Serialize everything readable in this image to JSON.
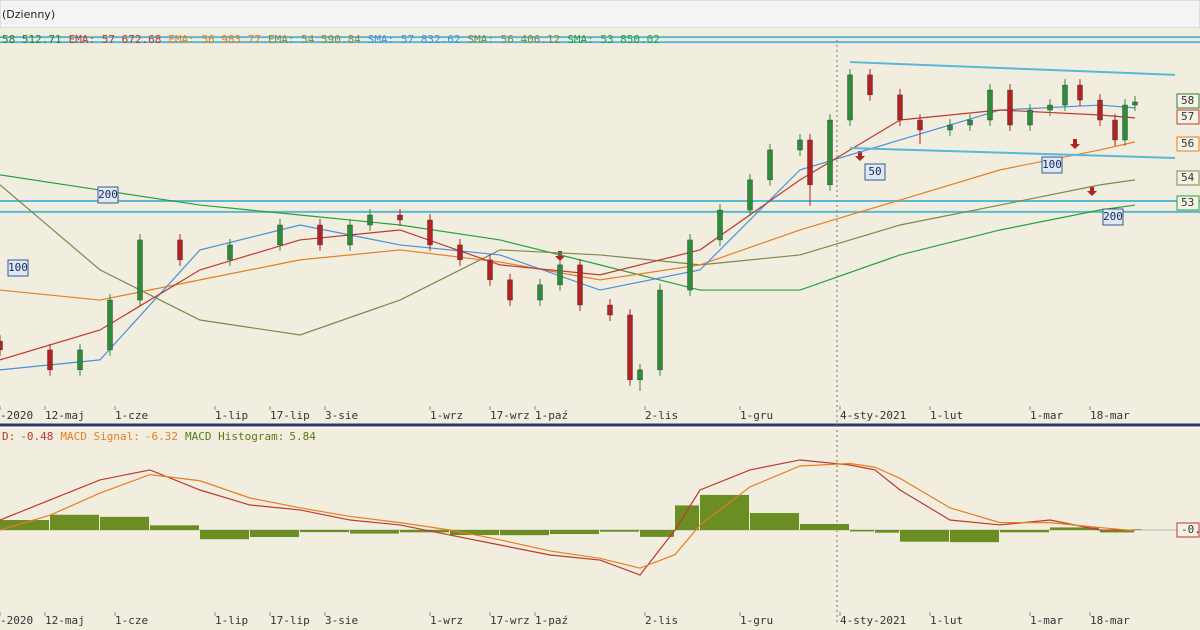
{
  "window_title": "(Dzienny)",
  "chart_data": [
    {
      "type": "candlestick",
      "legend": [
        {
          "text": "58 512.71",
          "color": "#2e7d32"
        },
        {
          "text": "EMA: 57 672.68",
          "color": "#c0392b"
        },
        {
          "text": "EMA: 56 983.77",
          "color": "#e67e22"
        },
        {
          "text": "EMA: 54 590.84",
          "color": "#8a8a3a"
        },
        {
          "text": "SMA: 57 832.62",
          "color": "#4a90d9"
        },
        {
          "text": "SMA: 56 406.12",
          "color": "#7a8a4a"
        },
        {
          "text": "SMA: 53 850.02",
          "color": "#27a040"
        }
      ],
      "x": [
        0,
        10,
        16,
        22,
        28,
        36,
        46,
        56,
        64,
        70,
        74,
        80,
        86,
        92,
        98,
        102,
        108,
        112,
        116,
        122,
        126,
        128,
        132,
        138,
        144,
        150,
        154,
        160,
        162,
        166,
        170,
        174,
        180,
        184,
        190,
        194,
        198,
        202,
        206,
        210,
        213,
        216,
        220,
        223,
        225,
        227
      ],
      "open": [
        47900,
        47530,
        46690,
        47530,
        49630,
        52160,
        51320,
        51950,
        52790,
        51950,
        52790,
        53210,
        53000,
        51950,
        51320,
        50480,
        49630,
        50270,
        51110,
        49420,
        49000,
        46270,
        46690,
        50050,
        52160,
        53420,
        54690,
        55950,
        56370,
        54480,
        57210,
        59110,
        58270,
        57210,
        56790,
        57000,
        57210,
        58470,
        57000,
        57630,
        57840,
        58680,
        58050,
        57210,
        56370,
        57840
      ],
      "high": [
        48150,
        47780,
        47780,
        49880,
        52410,
        52410,
        52200,
        53040,
        53040,
        53040,
        53460,
        53460,
        53250,
        52200,
        51570,
        50730,
        50520,
        51360,
        51360,
        49670,
        49250,
        46940,
        50300,
        52410,
        53670,
        54940,
        56200,
        56620,
        56620,
        57460,
        59360,
        59360,
        58520,
        57460,
        57250,
        57460,
        58720,
        58720,
        57880,
        58090,
        58930,
        58930,
        58300,
        57460,
        58090,
        58220
      ],
      "low": [
        47280,
        46440,
        46440,
        47280,
        49380,
        51070,
        51070,
        51700,
        51700,
        51700,
        52540,
        52750,
        51700,
        51070,
        50230,
        49380,
        49380,
        50020,
        49170,
        48750,
        46020,
        45800,
        46440,
        49800,
        51910,
        53170,
        54440,
        55700,
        53600,
        54230,
        56960,
        58020,
        56960,
        56200,
        56540,
        56750,
        56960,
        56750,
        56750,
        57380,
        57590,
        57800,
        56960,
        56120,
        56120,
        57590
      ],
      "close": [
        47530,
        46690,
        47530,
        49630,
        52160,
        51320,
        51950,
        52790,
        51950,
        52790,
        53210,
        53000,
        51950,
        51320,
        50480,
        49630,
        50270,
        51110,
        49420,
        49000,
        46270,
        46690,
        50050,
        52160,
        53420,
        54690,
        55950,
        56370,
        54480,
        57210,
        59110,
        58270,
        57210,
        56790,
        57000,
        57210,
        58470,
        57000,
        57630,
        57840,
        58680,
        58050,
        57210,
        56370,
        57840,
        57970
      ],
      "up_color": "#2e8b3a",
      "down_color": "#b22222",
      "overlay_x": [
        0,
        20,
        40,
        60,
        80,
        100,
        120,
        140,
        160,
        180,
        200,
        220,
        227
      ],
      "overlays": [
        {
          "color": "#27a040",
          "values": [
            54900,
            54260,
            53630,
            53210,
            52790,
            52160,
            51110,
            50050,
            50050,
            51530,
            52580,
            53420,
            53630
          ]
        },
        {
          "color": "#7a8a4a",
          "values": [
            54480,
            50900,
            48790,
            48160,
            49630,
            51740,
            51530,
            51110,
            51530,
            52790,
            53630,
            54480,
            54690
          ]
        },
        {
          "color": "#e67e22",
          "values": [
            50050,
            49630,
            50480,
            51320,
            51740,
            51230,
            50480,
            51110,
            52580,
            53840,
            55110,
            55950,
            56290
          ]
        },
        {
          "color": "#4a90d9",
          "values": [
            46690,
            47110,
            51740,
            52790,
            51950,
            51530,
            50050,
            50900,
            55110,
            56370,
            57630,
            57840,
            57720
          ]
        },
        {
          "color": "#c0392b",
          "values": [
            47110,
            48370,
            50900,
            52160,
            52580,
            51110,
            50690,
            51740,
            54690,
            57210,
            57630,
            57420,
            57300
          ]
        }
      ],
      "levels": [
        60700,
        60490,
        53800,
        53340
      ],
      "level_color": "#5bb8d4",
      "trendlines": [
        {
          "x": [
            170,
            235
          ],
          "values": [
            59650,
            59110
          ]
        },
        {
          "x": [
            170,
            235
          ],
          "values": [
            56030,
            55610
          ]
        }
      ],
      "annotations": [
        "200",
        "100",
        "50",
        "100",
        "200"
      ],
      "right_labels": [
        "58",
        "57",
        "56",
        "54",
        "53"
      ],
      "xlim": [
        0,
        240
      ],
      "ylim": [
        45000,
        61000
      ],
      "xticks": [
        {
          "value": 0,
          "label": "-2020"
        },
        {
          "value": 9,
          "label": "12-maj"
        },
        {
          "value": 23,
          "label": "1-cze"
        },
        {
          "value": 43,
          "label": "1-lip"
        },
        {
          "value": 54,
          "label": "17-lip"
        },
        {
          "value": 65,
          "label": "3-sie"
        },
        {
          "value": 86,
          "label": "1-wrz"
        },
        {
          "value": 98,
          "label": "17-wrz"
        },
        {
          "value": 107,
          "label": "1-paź"
        },
        {
          "value": 129,
          "label": "2-lis"
        },
        {
          "value": 148,
          "label": "1-gru"
        },
        {
          "value": 168,
          "label": "4-sty-2021"
        },
        {
          "value": 186,
          "label": "1-lut"
        },
        {
          "value": 206,
          "label": "1-mar"
        },
        {
          "value": 218,
          "label": "18-mar"
        }
      ]
    },
    {
      "type": "macd",
      "legend": [
        {
          "name": "D:",
          "value": -0.48,
          "color": "#c0392b"
        },
        {
          "name": "MACD Signal:",
          "value": -6.32,
          "color": "#e67e22"
        },
        {
          "name": "MACD Histogram:",
          "value": 5.84,
          "color": "#5a7a1a"
        }
      ],
      "x": [
        0,
        10,
        20,
        30,
        40,
        50,
        60,
        70,
        80,
        90,
        100,
        110,
        120,
        128,
        135,
        140,
        150,
        160,
        170,
        175,
        180,
        190,
        200,
        210,
        220,
        227
      ],
      "macd": [
        81,
        244,
        407,
        488,
        325,
        203,
        163,
        81,
        41,
        -41,
        -122,
        -203,
        -244,
        -366,
        0,
        325,
        488,
        569,
        528,
        488,
        325,
        81,
        41,
        81,
        0,
        -0.48
      ],
      "signal": [
        0,
        120,
        300,
        450,
        400,
        260,
        180,
        110,
        60,
        0,
        -80,
        -170,
        -230,
        -310,
        -200,
        40,
        350,
        520,
        540,
        510,
        420,
        180,
        60,
        60,
        20,
        -6.32
      ],
      "histogram": [
        81,
        124,
        107,
        38,
        -75,
        -57,
        -17,
        -29,
        -19,
        -41,
        -42,
        -33,
        -14,
        -56,
        200,
        285,
        138,
        49,
        -12,
        -22,
        -95,
        -99,
        -19,
        21,
        -20,
        5.84
      ],
      "macd_color": "#c0392b",
      "signal_color": "#e67e22",
      "histogram_color": "#6b8e23",
      "right_label": "-0.",
      "xlim": [
        0,
        240
      ],
      "ylim": [
        -650,
        650
      ]
    }
  ]
}
